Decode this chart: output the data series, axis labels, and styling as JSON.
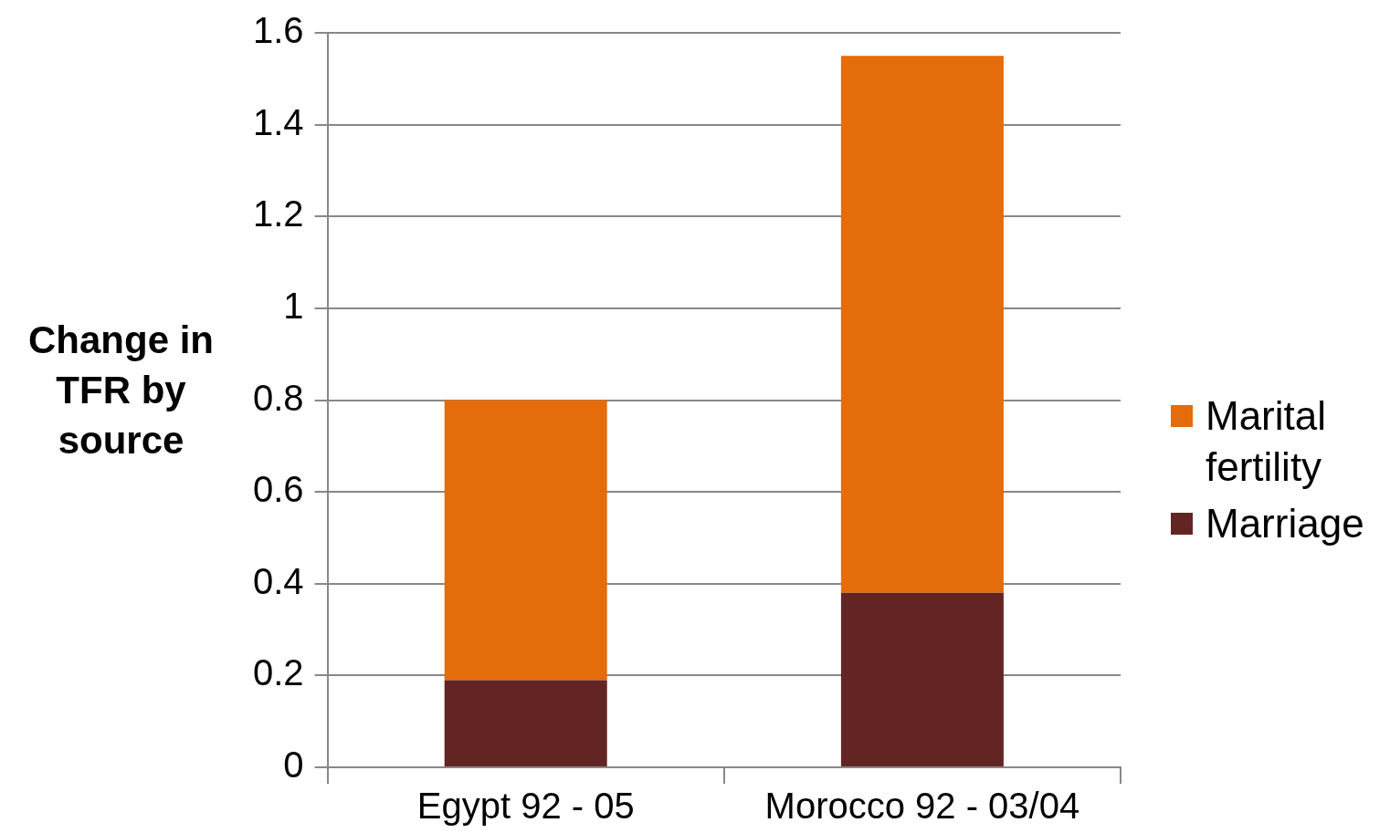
{
  "chart_data": {
    "type": "bar",
    "ylabel": "Change in TFR by source",
    "categories": [
      "Egypt 92 - 05",
      "Morocco 92 - 03/04"
    ],
    "stacked": true,
    "series": [
      {
        "name": "Marriage",
        "color": "#632523",
        "values": [
          0.19,
          0.38
        ]
      },
      {
        "name": "Marital fertility",
        "color": "#e46c0a",
        "values": [
          0.61,
          1.17
        ]
      }
    ],
    "ylim": [
      0,
      1.6
    ],
    "yticks": [
      0,
      0.2,
      0.4,
      0.6,
      0.8,
      1,
      1.2,
      1.4,
      1.6
    ],
    "grid": "y",
    "legend": "right"
  }
}
